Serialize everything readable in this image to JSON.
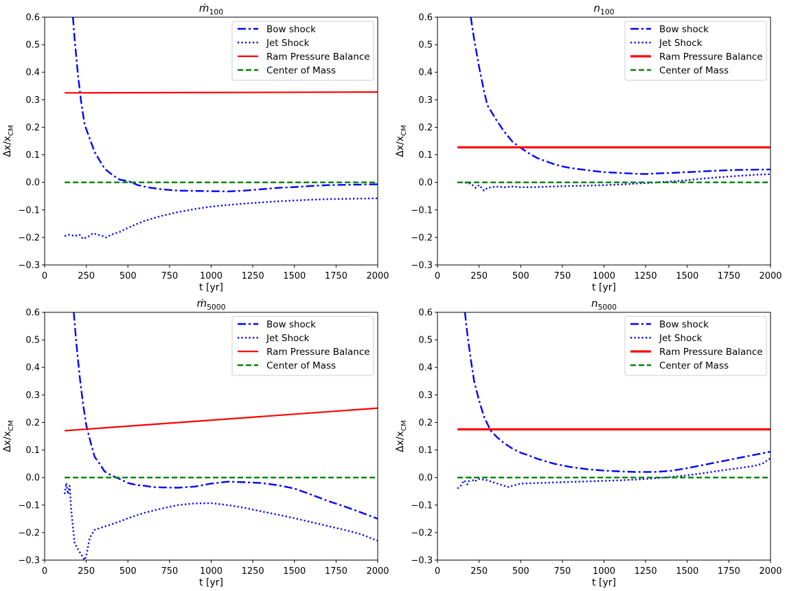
{
  "chart_data": [
    {
      "type": "line",
      "title": "ṁ",
      "title_sub": "100",
      "xlabel": "t [yr]",
      "ylabel": "Δx/x",
      "ylabel_sub": "CM",
      "xlim": [
        0,
        2000
      ],
      "ylim": [
        -0.3,
        0.6
      ],
      "xticks": [
        "0",
        "250",
        "500",
        "750",
        "1000",
        "1250",
        "1500",
        "1750",
        "2000"
      ],
      "yticks": [
        "−0.3",
        "−0.2",
        "−0.1",
        "0.0",
        "0.1",
        "0.2",
        "0.3",
        "0.4",
        "0.5",
        "0.6"
      ],
      "grid": false,
      "legend_loc": "top-right",
      "series": [
        {
          "name": "Bow shock",
          "color": "#0000ff",
          "style": "dashdot",
          "x": [
            170,
            180,
            200,
            220,
            240,
            270,
            300,
            330,
            360,
            400,
            450,
            500,
            560,
            620,
            700,
            800,
            900,
            1000,
            1100,
            1200,
            1300,
            1400,
            1500,
            1600,
            1700,
            1800,
            1900,
            2000
          ],
          "y": [
            0.6,
            0.52,
            0.39,
            0.29,
            0.21,
            0.16,
            0.11,
            0.08,
            0.05,
            0.03,
            0.01,
            0.005,
            -0.01,
            -0.018,
            -0.025,
            -0.03,
            -0.031,
            -0.032,
            -0.033,
            -0.03,
            -0.025,
            -0.02,
            -0.017,
            -0.013,
            -0.01,
            -0.009,
            -0.008,
            -0.007
          ]
        },
        {
          "name": "Jet Shock",
          "color": "#0000ff",
          "style": "dotted",
          "x": [
            120,
            150,
            180,
            210,
            230,
            260,
            290,
            320,
            350,
            370,
            400,
            450,
            500,
            550,
            600,
            700,
            800,
            900,
            1000,
            1100,
            1200,
            1300,
            1400,
            1500,
            1600,
            1700,
            1800,
            1900,
            2000
          ],
          "y": [
            -0.195,
            -0.19,
            -0.195,
            -0.19,
            -0.205,
            -0.198,
            -0.185,
            -0.19,
            -0.195,
            -0.2,
            -0.19,
            -0.18,
            -0.165,
            -0.152,
            -0.14,
            -0.122,
            -0.108,
            -0.097,
            -0.088,
            -0.082,
            -0.077,
            -0.073,
            -0.069,
            -0.066,
            -0.063,
            -0.061,
            -0.06,
            -0.059,
            -0.058
          ]
        },
        {
          "name": "Ram Pressure Balance",
          "color": "#ff0000",
          "style": "solid",
          "width": 2.2,
          "x": [
            120,
            2000
          ],
          "y": [
            0.325,
            0.328
          ]
        },
        {
          "name": "Center of Mass",
          "color": "#008000",
          "style": "dashed",
          "x": [
            120,
            2000
          ],
          "y": [
            0.0,
            0.0
          ]
        }
      ]
    },
    {
      "type": "line",
      "title": "n",
      "title_sub": "100",
      "xlabel": "t [yr]",
      "ylabel": "Δx/x",
      "ylabel_sub": "CM",
      "xlim": [
        0,
        2000
      ],
      "ylim": [
        -0.3,
        0.6
      ],
      "xticks": [
        "0",
        "250",
        "500",
        "750",
        "1000",
        "1250",
        "1500",
        "1750",
        "2000"
      ],
      "yticks": [
        "−0.3",
        "−0.2",
        "−0.1",
        "0.0",
        "0.1",
        "0.2",
        "0.3",
        "0.4",
        "0.5",
        "0.6"
      ],
      "grid": false,
      "legend_loc": "top-right",
      "series": [
        {
          "name": "Bow shock",
          "color": "#0000ff",
          "style": "dashdot",
          "x": [
            200,
            220,
            250,
            280,
            300,
            350,
            400,
            450,
            500,
            550,
            600,
            650,
            700,
            750,
            800,
            900,
            1000,
            1100,
            1200,
            1250,
            1300,
            1400,
            1500,
            1600,
            1700,
            1800,
            1900,
            2000
          ],
          "y": [
            0.6,
            0.52,
            0.42,
            0.33,
            0.28,
            0.23,
            0.185,
            0.148,
            0.125,
            0.105,
            0.088,
            0.077,
            0.066,
            0.058,
            0.052,
            0.044,
            0.037,
            0.034,
            0.031,
            0.03,
            0.032,
            0.034,
            0.037,
            0.04,
            0.043,
            0.045,
            0.046,
            0.047
          ]
        },
        {
          "name": "Jet Shock",
          "color": "#0000ff",
          "style": "dotted",
          "x": [
            120,
            160,
            200,
            230,
            250,
            280,
            300,
            350,
            400,
            450,
            500,
            600,
            700,
            800,
            900,
            1000,
            1100,
            1200,
            1300,
            1400,
            1500,
            1600,
            1700,
            1800,
            1900,
            2000
          ],
          "y": [
            0.0,
            0.0,
            -0.005,
            -0.02,
            -0.01,
            -0.03,
            -0.02,
            -0.015,
            -0.018,
            -0.015,
            -0.018,
            -0.017,
            -0.015,
            -0.013,
            -0.012,
            -0.01,
            -0.008,
            -0.004,
            -0.001,
            0.003,
            0.008,
            0.014,
            0.019,
            0.023,
            0.027,
            0.03
          ]
        },
        {
          "name": "Ram Pressure Balance",
          "color": "#ff0000",
          "style": "solid",
          "width": 3.2,
          "x": [
            120,
            2000
          ],
          "y": [
            0.127,
            0.127
          ]
        },
        {
          "name": "Center of Mass",
          "color": "#008000",
          "style": "dashed",
          "x": [
            120,
            2000
          ],
          "y": [
            0.0,
            0.0
          ]
        }
      ]
    },
    {
      "type": "line",
      "title": "ṁ",
      "title_sub": "5000",
      "xlabel": "t [yr]",
      "ylabel": "Δx/x",
      "ylabel_sub": "CM",
      "xlim": [
        0,
        2000
      ],
      "ylim": [
        -0.3,
        0.6
      ],
      "xticks": [
        "0",
        "250",
        "500",
        "750",
        "1000",
        "1250",
        "1500",
        "1750",
        "2000"
      ],
      "yticks": [
        "−0.3",
        "−0.2",
        "−0.1",
        "0.0",
        "0.1",
        "0.2",
        "0.3",
        "0.4",
        "0.5",
        "0.6"
      ],
      "grid": false,
      "legend_loc": "top-right",
      "series": [
        {
          "name": "Bow shock",
          "color": "#0000ff",
          "style": "dashdot",
          "x": [
            175,
            190,
            210,
            230,
            250,
            275,
            300,
            330,
            360,
            400,
            450,
            500,
            550,
            600,
            650,
            700,
            800,
            900,
            1000,
            1100,
            1200,
            1300,
            1400,
            1500,
            1600,
            1700,
            1800,
            1900,
            2000
          ],
          "y": [
            0.6,
            0.49,
            0.37,
            0.27,
            0.19,
            0.13,
            0.075,
            0.05,
            0.022,
            0.008,
            -0.005,
            -0.02,
            -0.027,
            -0.03,
            -0.035,
            -0.036,
            -0.037,
            -0.033,
            -0.022,
            -0.015,
            -0.017,
            -0.02,
            -0.028,
            -0.04,
            -0.062,
            -0.085,
            -0.105,
            -0.127,
            -0.15
          ]
        },
        {
          "name": "Jet Shock",
          "color": "#0000ff",
          "style": "dotted",
          "x": [
            120,
            130,
            140,
            150,
            160,
            180,
            200,
            220,
            240,
            250,
            270,
            300,
            350,
            400,
            450,
            500,
            600,
            700,
            800,
            900,
            1000,
            1100,
            1200,
            1300,
            1400,
            1500,
            1600,
            1700,
            1800,
            1900,
            2000
          ],
          "y": [
            -0.06,
            -0.02,
            -0.06,
            -0.03,
            -0.12,
            -0.24,
            -0.26,
            -0.28,
            -0.3,
            -0.285,
            -0.22,
            -0.19,
            -0.18,
            -0.17,
            -0.16,
            -0.148,
            -0.128,
            -0.113,
            -0.1,
            -0.094,
            -0.093,
            -0.1,
            -0.11,
            -0.123,
            -0.135,
            -0.148,
            -0.162,
            -0.176,
            -0.19,
            -0.206,
            -0.23
          ]
        },
        {
          "name": "Ram Pressure Balance",
          "color": "#ff0000",
          "style": "solid",
          "width": 2.2,
          "x": [
            120,
            2000
          ],
          "y": [
            0.17,
            0.252
          ]
        },
        {
          "name": "Center of Mass",
          "color": "#008000",
          "style": "dashed",
          "x": [
            120,
            2000
          ],
          "y": [
            0.0,
            0.0
          ]
        }
      ]
    },
    {
      "type": "line",
      "title": "n",
      "title_sub": "5000",
      "xlabel": "t [yr]",
      "ylabel": "Δx/x",
      "ylabel_sub": "CM",
      "xlim": [
        0,
        2000
      ],
      "ylim": [
        -0.3,
        0.6
      ],
      "xticks": [
        "0",
        "250",
        "500",
        "750",
        "1000",
        "1250",
        "1500",
        "1750",
        "2000"
      ],
      "yticks": [
        "−0.3",
        "−0.2",
        "−0.1",
        "0.0",
        "0.1",
        "0.2",
        "0.3",
        "0.4",
        "0.5",
        "0.6"
      ],
      "grid": false,
      "legend_loc": "top-right",
      "series": [
        {
          "name": "Bow shock",
          "color": "#0000ff",
          "style": "dashdot",
          "x": [
            165,
            180,
            200,
            220,
            250,
            280,
            320,
            360,
            400,
            450,
            500,
            550,
            600,
            700,
            800,
            900,
            1000,
            1100,
            1200,
            1300,
            1400,
            1500,
            1600,
            1700,
            1800,
            1900,
            2000
          ],
          "y": [
            0.6,
            0.52,
            0.43,
            0.35,
            0.28,
            0.22,
            0.17,
            0.145,
            0.125,
            0.105,
            0.09,
            0.08,
            0.068,
            0.05,
            0.038,
            0.03,
            0.025,
            0.022,
            0.02,
            0.02,
            0.024,
            0.034,
            0.046,
            0.058,
            0.07,
            0.082,
            0.094
          ]
        },
        {
          "name": "Jet Shock",
          "color": "#0000ff",
          "style": "dotted",
          "x": [
            120,
            140,
            160,
            180,
            200,
            220,
            250,
            300,
            350,
            400,
            430,
            450,
            500,
            600,
            700,
            800,
            900,
            1000,
            1100,
            1200,
            1300,
            1400,
            1500,
            1600,
            1700,
            1800,
            1900,
            1950,
            2000
          ],
          "y": [
            -0.04,
            -0.03,
            -0.01,
            -0.025,
            0.0,
            -0.015,
            -0.005,
            -0.01,
            -0.02,
            -0.03,
            -0.035,
            -0.03,
            -0.022,
            -0.02,
            -0.018,
            -0.016,
            -0.014,
            -0.012,
            -0.01,
            -0.007,
            -0.003,
            0.002,
            0.008,
            0.016,
            0.025,
            0.033,
            0.042,
            0.05,
            0.07
          ]
        },
        {
          "name": "Ram Pressure Balance",
          "color": "#ff0000",
          "style": "solid",
          "width": 3.2,
          "x": [
            120,
            2000
          ],
          "y": [
            0.175,
            0.175
          ]
        },
        {
          "name": "Center of Mass",
          "color": "#008000",
          "style": "dashed",
          "x": [
            120,
            2000
          ],
          "y": [
            0.0,
            0.0
          ]
        }
      ]
    }
  ]
}
